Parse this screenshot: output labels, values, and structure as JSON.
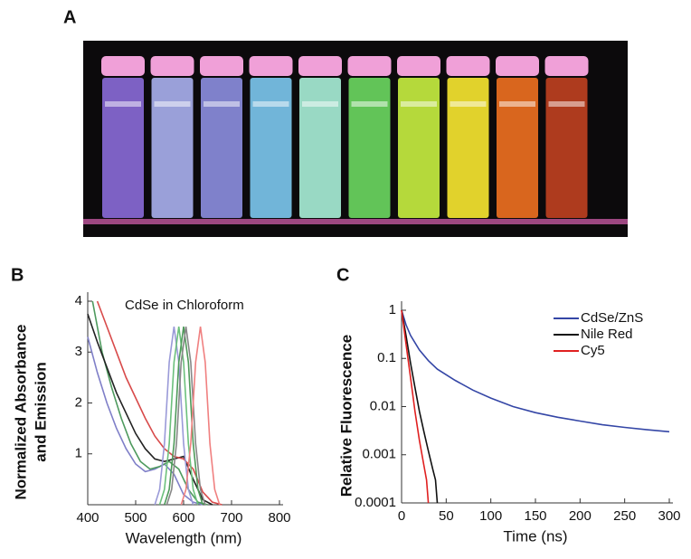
{
  "photo": {
    "panel_label": "A"
  },
  "chart_data": [
    {
      "type": "line",
      "panel_label": "B",
      "annotation": "CdSe in Chloroform",
      "xlabel": "Wavelength (nm)",
      "ylabel": [
        "Normalized Absorbance",
        "and Emission"
      ],
      "xlim": [
        400,
        800
      ],
      "xticks": [
        400,
        500,
        600,
        700,
        800
      ],
      "ylim": [
        0,
        4
      ],
      "yticks": [
        1,
        2,
        3,
        4
      ],
      "series": [
        {
          "color": "#7f7fc8",
          "x": [
            400,
            420,
            440,
            460,
            480,
            500,
            520,
            540,
            560,
            580,
            600,
            620,
            640
          ],
          "values": [
            3.3,
            2.6,
            2.0,
            1.5,
            1.1,
            0.8,
            0.65,
            0.7,
            0.8,
            0.6,
            0.2,
            0.05,
            0
          ]
        },
        {
          "color": "#4e9a5e",
          "x": [
            410,
            430,
            450,
            470,
            490,
            510,
            530,
            550,
            570,
            590,
            610,
            630,
            650
          ],
          "values": [
            4.0,
            3.0,
            2.3,
            1.7,
            1.2,
            0.85,
            0.7,
            0.75,
            0.85,
            0.7,
            0.3,
            0.05,
            0
          ]
        },
        {
          "color": "#222222",
          "x": [
            400,
            420,
            440,
            460,
            480,
            500,
            520,
            540,
            560,
            580,
            600,
            620,
            640,
            660
          ],
          "values": [
            3.75,
            3.2,
            2.7,
            2.2,
            1.8,
            1.4,
            1.1,
            0.9,
            0.85,
            0.9,
            0.95,
            0.5,
            0.1,
            0
          ]
        },
        {
          "color": "#d84a4a",
          "x": [
            420,
            440,
            460,
            480,
            500,
            520,
            540,
            560,
            580,
            600,
            620,
            640,
            660,
            680
          ],
          "values": [
            4.0,
            3.5,
            3.0,
            2.5,
            2.1,
            1.7,
            1.35,
            1.1,
            0.95,
            0.9,
            0.7,
            0.25,
            0.05,
            0
          ]
        },
        {
          "color": "#9a9ad8",
          "x": [
            540,
            550,
            560,
            570,
            580,
            590,
            600,
            610,
            620
          ],
          "values": [
            0,
            0.3,
            1.2,
            2.8,
            3.5,
            2.8,
            1.2,
            0.3,
            0
          ]
        },
        {
          "color": "#6cc07c",
          "x": [
            550,
            560,
            570,
            580,
            590,
            600,
            610,
            620,
            630
          ],
          "values": [
            0,
            0.3,
            1.2,
            2.8,
            3.5,
            2.8,
            1.2,
            0.3,
            0
          ]
        },
        {
          "color": "#4f9a5a",
          "x": [
            560,
            570,
            580,
            590,
            600,
            610,
            620,
            630,
            640
          ],
          "values": [
            0,
            0.3,
            1.2,
            2.8,
            3.5,
            2.8,
            1.2,
            0.3,
            0
          ]
        },
        {
          "color": "#888888",
          "x": [
            565,
            575,
            585,
            595,
            605,
            615,
            625,
            635,
            645
          ],
          "values": [
            0,
            0.3,
            1.2,
            2.8,
            3.5,
            2.8,
            1.2,
            0.3,
            0
          ]
        },
        {
          "color": "#f08080",
          "x": [
            595,
            605,
            615,
            625,
            635,
            645,
            655,
            665,
            675
          ],
          "values": [
            0,
            0.3,
            1.2,
            2.8,
            3.5,
            2.8,
            1.2,
            0.3,
            0
          ]
        }
      ]
    },
    {
      "type": "line",
      "panel_label": "C",
      "xlabel": "Time (ns)",
      "ylabel": [
        "Relative Fluorescence"
      ],
      "log_y": true,
      "legend": "upper right",
      "xlim": [
        0,
        300
      ],
      "xticks": [
        0,
        50,
        100,
        150,
        200,
        250,
        300
      ],
      "ylim": [
        0.0001,
        1
      ],
      "yticks": [
        0.0001,
        0.001,
        0.01,
        0.1,
        1
      ],
      "series": [
        {
          "name": "CdSe/ZnS",
          "color": "#3446a6",
          "x": [
            0,
            5,
            10,
            20,
            30,
            40,
            60,
            80,
            100,
            125,
            150,
            175,
            200,
            225,
            250,
            275,
            300
          ],
          "values": [
            1,
            0.5,
            0.3,
            0.15,
            0.09,
            0.06,
            0.035,
            0.022,
            0.015,
            0.01,
            0.0075,
            0.006,
            0.005,
            0.0042,
            0.0037,
            0.0033,
            0.003
          ]
        },
        {
          "name": "Nile Red",
          "color": "#111111",
          "x": [
            0,
            5,
            10,
            15,
            20,
            25,
            30,
            35,
            38,
            40
          ],
          "values": [
            1,
            0.3,
            0.08,
            0.025,
            0.008,
            0.003,
            0.0012,
            0.0005,
            0.0003,
            0.0001
          ]
        },
        {
          "name": "Cy5",
          "color": "#e02020",
          "x": [
            0,
            5,
            10,
            15,
            20,
            25,
            28,
            30
          ],
          "values": [
            1,
            0.2,
            0.04,
            0.008,
            0.002,
            0.0006,
            0.0003,
            0.0001
          ]
        }
      ]
    }
  ]
}
